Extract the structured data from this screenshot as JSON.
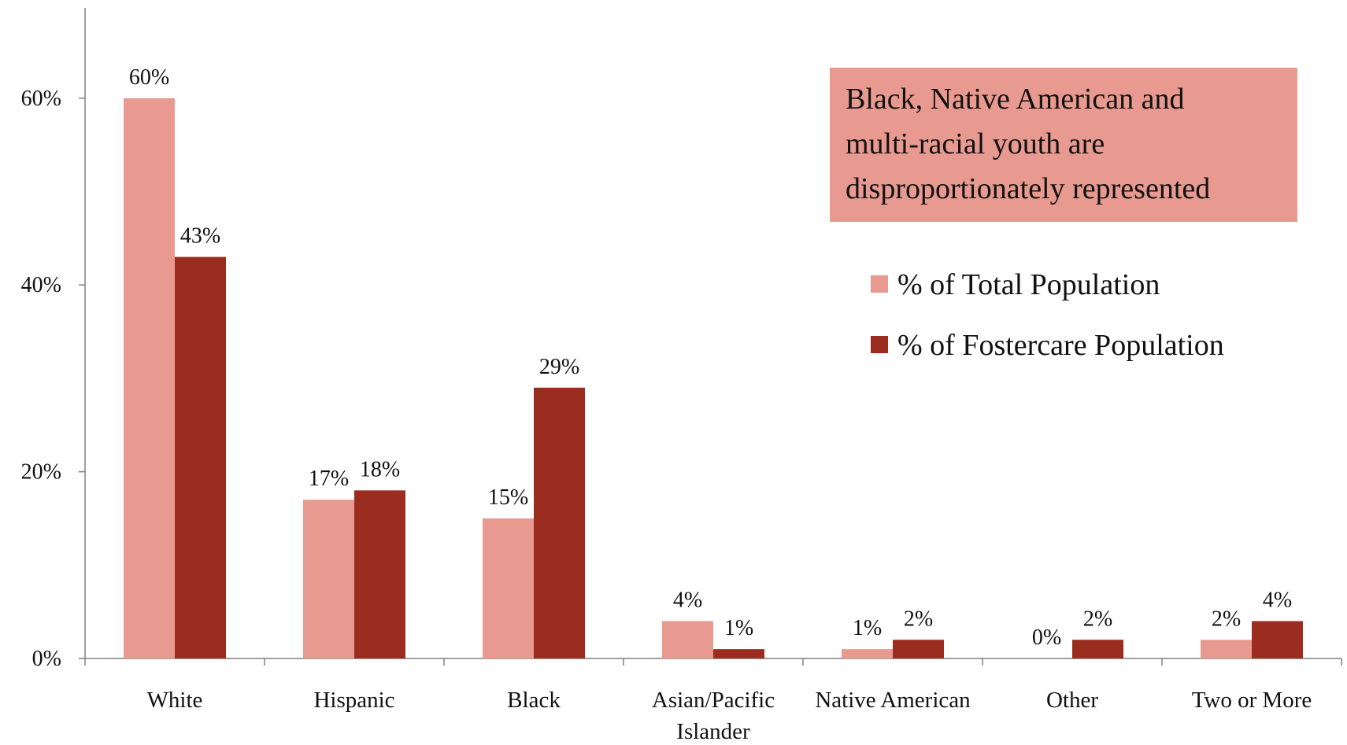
{
  "chart_data": {
    "type": "bar",
    "categories": [
      "White",
      "Hispanic",
      "Black",
      "Asian/Pacific Islander",
      "Native American",
      "Other",
      "Two or More"
    ],
    "category_display": [
      [
        "White"
      ],
      [
        "Hispanic"
      ],
      [
        "Black"
      ],
      [
        "Asian/Pacific",
        "Islander"
      ],
      [
        "Native American"
      ],
      [
        "Other"
      ],
      [
        "Two or More"
      ]
    ],
    "series": [
      {
        "name": "% of Total Population",
        "values": [
          60,
          17,
          15,
          4,
          1,
          0,
          2
        ],
        "labels": [
          "60%",
          "17%",
          "15%",
          "4%",
          "1%",
          "0%",
          "2%"
        ],
        "color": "#e99a90"
      },
      {
        "name": "% of Fostercare Population",
        "values": [
          43,
          18,
          29,
          1,
          2,
          2,
          4
        ],
        "labels": [
          "43%",
          "18%",
          "29%",
          "1%",
          "2%",
          "2%",
          "4%"
        ],
        "color": "#9b2c20"
      }
    ],
    "y_ticks": [
      0,
      20,
      40,
      60
    ],
    "y_tick_labels": [
      "0%",
      "20%",
      "40%",
      "60%"
    ],
    "ylim": [
      0,
      70
    ],
    "grid": false,
    "legend_position": "right",
    "title": "",
    "xlabel": "",
    "ylabel": ""
  },
  "callout": {
    "lines": [
      "Black, Native American and",
      "multi-racial youth are",
      "disproportionately represented"
    ]
  }
}
